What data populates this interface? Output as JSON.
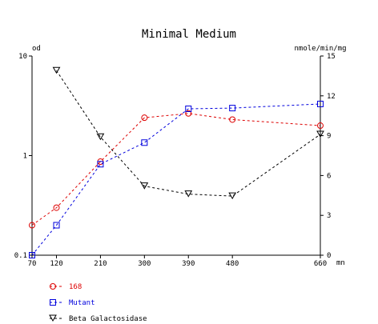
{
  "chart_data": {
    "type": "line",
    "title": "Minimal Medium",
    "left_axis_label": "od",
    "right_axis_label": "nmole/min/mg",
    "x_unit": "mn",
    "x": [
      70,
      120,
      210,
      300,
      390,
      480,
      660
    ],
    "x_ticks": [
      70,
      120,
      210,
      300,
      390,
      480,
      660
    ],
    "y_left_scale": "log",
    "y_left_range": [
      0.1,
      10
    ],
    "y_left_ticks": [
      "0.1",
      "1",
      "10"
    ],
    "y_right_range": [
      0,
      15
    ],
    "y_right_ticks": [
      "0",
      "3",
      "6",
      "9",
      "12",
      "15"
    ],
    "series": [
      {
        "name": "168",
        "axis": "left",
        "color": "#dd0000",
        "marker": "circle",
        "x": [
          70,
          120,
          210,
          300,
          390,
          480,
          660
        ],
        "y": [
          0.2,
          0.3,
          0.87,
          2.4,
          2.65,
          2.3,
          2.0
        ]
      },
      {
        "name": "Mutant",
        "axis": "left",
        "color": "#0000dd",
        "marker": "square",
        "x": [
          70,
          120,
          210,
          300,
          390,
          480,
          660
        ],
        "y": [
          0.1,
          0.2,
          0.82,
          1.35,
          2.95,
          3.0,
          3.3
        ]
      },
      {
        "name": "Beta Galactosidase",
        "axis": "right",
        "color": "#000000",
        "marker": "triangle-down",
        "x": [
          120,
          210,
          300,
          390,
          480,
          660
        ],
        "y": [
          13.9,
          8.9,
          5.2,
          4.6,
          4.45,
          9.1
        ]
      }
    ],
    "legend_position": "bottom-left"
  }
}
